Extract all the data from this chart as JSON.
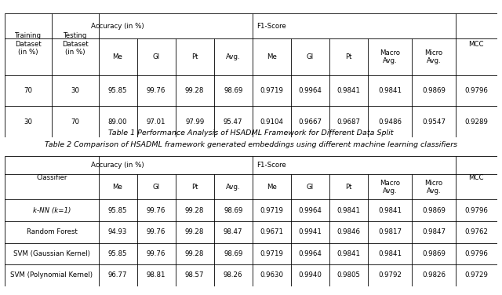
{
  "table1_title": "Table 1 Performance Analysis of HSADML Framework for Different Data Split",
  "table2_title": "Table 2 Comparison of HSADML framework generated embeddings using different machine learning classifiers",
  "table1_data": [
    [
      "70",
      "30",
      "95.85",
      "99.76",
      "99.28",
      "98.69",
      "0.9719",
      "0.9964",
      "0.9841",
      "0.9841",
      "0.9869",
      "0.9796"
    ],
    [
      "30",
      "70",
      "89.00",
      "97.01",
      "97.99",
      "95.47",
      "0.9104",
      "0.9667",
      "0.9687",
      "0.9486",
      "0.9547",
      "0.9289"
    ]
  ],
  "table2_data": [
    [
      "k-NN (k=1)",
      "95.85",
      "99.76",
      "99.28",
      "98.69",
      "0.9719",
      "0.9964",
      "0.9841",
      "0.9841",
      "0.9869",
      "0.9796"
    ],
    [
      "Random Forest",
      "94.93",
      "99.76",
      "99.28",
      "98.47",
      "0.9671",
      "0.9941",
      "0.9846",
      "0.9817",
      "0.9847",
      "0.9762"
    ],
    [
      "SVM (Gaussian Kernel)",
      "95.85",
      "99.76",
      "99.28",
      "98.69",
      "0.9719",
      "0.9964",
      "0.9841",
      "0.9841",
      "0.9869",
      "0.9796"
    ],
    [
      "SVM (Polynomial Kernel)",
      "96.77",
      "98.81",
      "98.57",
      "98.26",
      "0.9630",
      "0.9940",
      "0.9805",
      "0.9792",
      "0.9826",
      "0.9729"
    ]
  ],
  "bg_color": "#ffffff",
  "line_color": "#000000",
  "font_size": 6.2,
  "title_font_size": 6.8
}
